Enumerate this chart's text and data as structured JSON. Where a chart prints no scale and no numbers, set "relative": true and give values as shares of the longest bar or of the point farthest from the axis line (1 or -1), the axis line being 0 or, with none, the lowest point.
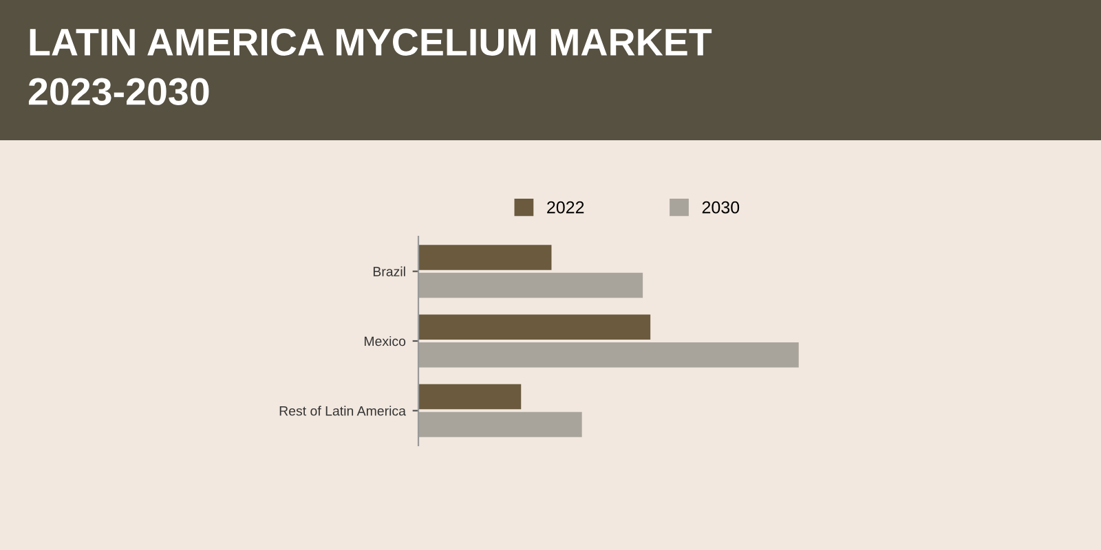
{
  "chart_data": {
    "type": "bar",
    "title": "LATIN AMERICA MYCELIUM MARKET\n2023-2030",
    "orientation": "horizontal",
    "relative": true,
    "legend": "top",
    "categories": [
      "Brazil",
      "Mexico",
      "Rest of Latin America"
    ],
    "series": [
      {
        "name": "2022",
        "color": "#6b5a3e",
        "values": [
          0.35,
          0.61,
          0.27
        ]
      },
      {
        "name": "2030",
        "color": "#a8a49c",
        "values": [
          0.59,
          1.0,
          0.43
        ]
      }
    ]
  }
}
